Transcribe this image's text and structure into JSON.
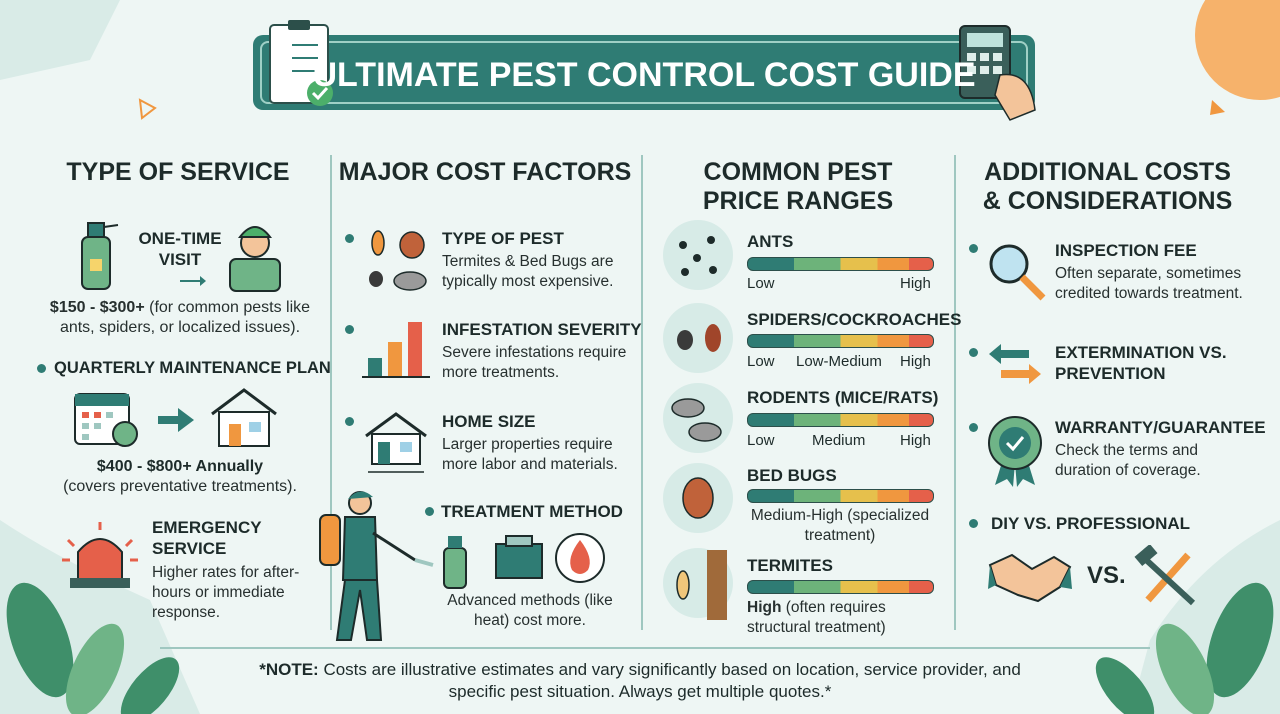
{
  "title": "ULTIMATE PEST CONTROL COST GUIDE",
  "columns": [
    {
      "heading": "TYPE OF SERVICE",
      "items": [
        {
          "label": "ONE-TIME VISIT",
          "price": "$150 - $300+",
          "note": "(for common pests like ants, spiders, or localized issues)."
        },
        {
          "label": "QUARTERLY MAINTENANCE PLAN",
          "price": "$400 - $800+ Annually",
          "note": "(covers preventative treatments)."
        },
        {
          "label": "EMERGENCY SERVICE",
          "note": "Higher rates for after-hours or immediate response."
        }
      ]
    },
    {
      "heading": "MAJOR COST FACTORS",
      "items": [
        {
          "label": "TYPE OF PEST",
          "note": "Termites & Bed Bugs are typically most expensive."
        },
        {
          "label": "INFESTATION SEVERITY",
          "note": "Severe infestations require more treatments."
        },
        {
          "label": "HOME SIZE",
          "note": "Larger properties require more labor and materials."
        },
        {
          "label": "TREATMENT METHOD",
          "note": "Advanced methods (like heat) cost more."
        }
      ]
    },
    {
      "heading": "COMMON PEST PRICE RANGES",
      "items": [
        {
          "label": "ANTS",
          "scale": [
            "Low",
            "High"
          ]
        },
        {
          "label": "SPIDERS/COCKROACHES",
          "scale": [
            "Low",
            "Low-Medium",
            "High"
          ]
        },
        {
          "label": "RODENTS (MICE/RATS)",
          "scale": [
            "Low",
            "Medium",
            "High"
          ]
        },
        {
          "label": "BED BUGS",
          "note": "Medium-High (specialized treatment)"
        },
        {
          "label": "TERMITES",
          "level": "High",
          "note": "(often requires structural treatment)"
        }
      ]
    },
    {
      "heading": "ADDITIONAL COSTS & CONSIDERATIONS",
      "items": [
        {
          "label": "INSPECTION FEE",
          "note": "Often separate, sometimes credited towards treatment."
        },
        {
          "label": "EXTERMINATION VS. PREVENTION"
        },
        {
          "label": "WARRANTY/GUARANTEE",
          "note": "Check the terms and duration of coverage."
        },
        {
          "label": "DIY VS. PROFESSIONAL",
          "versus": "VS."
        }
      ]
    }
  ],
  "footnote": {
    "label": "*NOTE:",
    "text": "Costs are illustrative estimates and vary significantly based on location, service provider, and specific pest situation. Always get multiple quotes.*"
  }
}
